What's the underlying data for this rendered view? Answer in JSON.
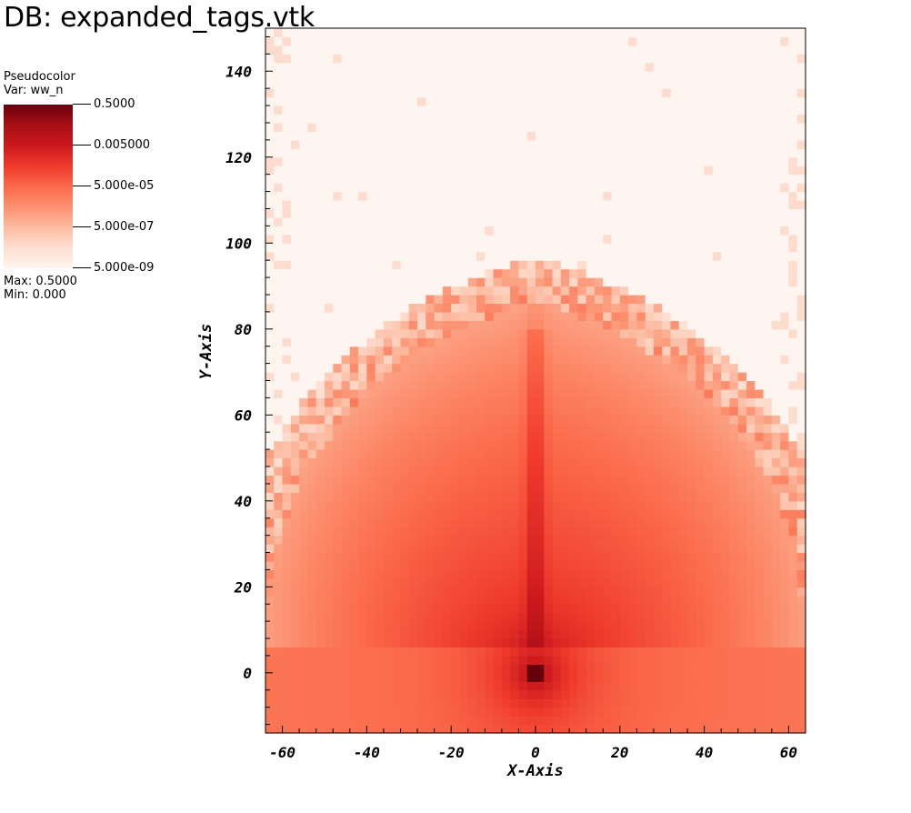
{
  "db_title": "DB: expanded_tags.vtk",
  "legend": {
    "plot_type": "Pseudocolor",
    "var_label": "Var: ww_n",
    "ticks": [
      "0.5000",
      "0.005000",
      "5.000e-05",
      "5.000e-07",
      "5.000e-09"
    ],
    "max_label": "Max:  0.5000",
    "min_label": "Min:  0.000",
    "colormap": [
      "#fff5f0",
      "#fee0d2",
      "#fcbba1",
      "#fc9272",
      "#fb6a4a",
      "#ef3b2c",
      "#cb181d",
      "#a50f15",
      "#67000d"
    ]
  },
  "chart_data": {
    "type": "heatmap",
    "title": "",
    "xlabel": "X-Axis",
    "ylabel": "Y-Axis",
    "xlim": [
      -64,
      64
    ],
    "ylim": [
      -14,
      150
    ],
    "xticks": [
      -60,
      -40,
      -20,
      0,
      20,
      40,
      60
    ],
    "yticks": [
      0,
      20,
      40,
      60,
      80,
      100,
      120,
      140
    ],
    "xtick_labels": [
      "-60",
      "-40",
      "-20",
      "0",
      "20",
      "40",
      "60"
    ],
    "ytick_labels": [
      "0",
      "20",
      "40",
      "60",
      "80",
      "100",
      "120",
      "140"
    ],
    "color_scale": "log",
    "value_range": [
      5e-09,
      0.5
    ],
    "field_description_points": [
      {
        "x": 0,
        "y": 0,
        "value": 0.5
      },
      {
        "x": 0,
        "y": 60,
        "value": 5e-05
      },
      {
        "x": 0,
        "y": 85,
        "value": 5e-07
      },
      {
        "x": -40,
        "y": 0,
        "value": 5e-05
      },
      {
        "x": 60,
        "y": 40,
        "value": 5e-07
      },
      {
        "x": 0,
        "y": 140,
        "value": 5e-09
      }
    ]
  }
}
